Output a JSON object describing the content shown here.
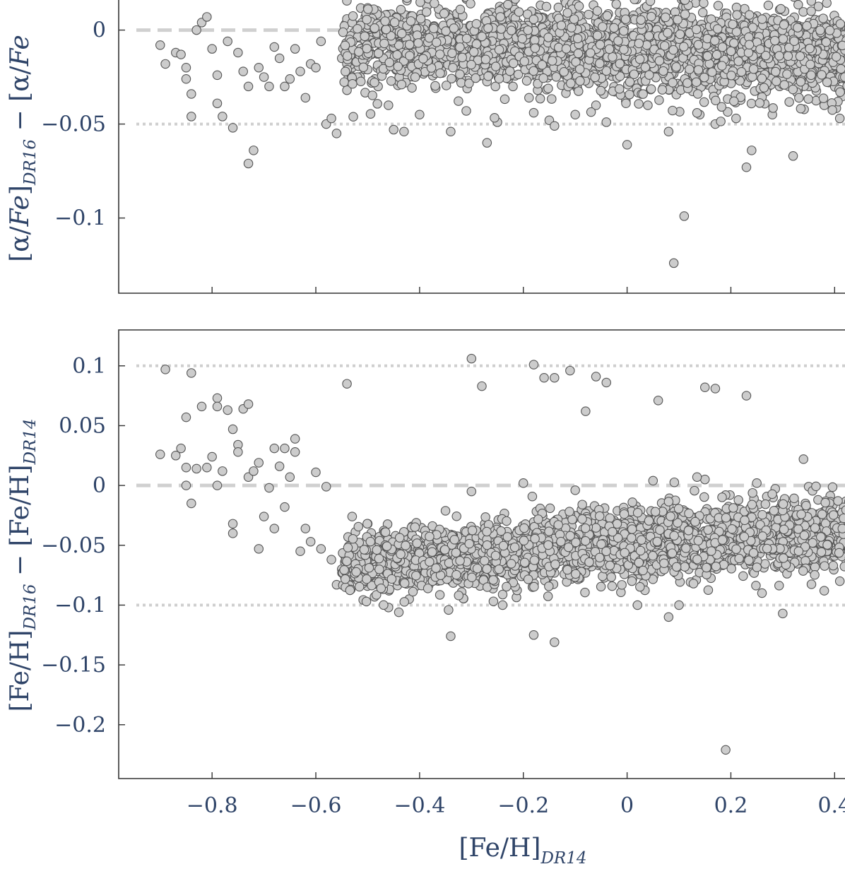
{
  "chart_data": [
    {
      "type": "scatter",
      "panel": "top",
      "ylabel_parts": [
        "[α/",
        "Fe",
        "]",
        "DR16",
        " − [α/",
        "Fe"
      ],
      "yticks": [
        "0",
        "−0.05",
        "−0.1"
      ],
      "ytick_values": [
        0,
        -0.05,
        -0.1
      ],
      "xlim": [
        -0.98,
        0.42
      ],
      "ylim": [
        -0.14,
        0.016
      ],
      "grid": false,
      "reference_lines": [
        {
          "y": 0,
          "style": "dashed"
        },
        {
          "y": -0.05,
          "style": "dotted"
        }
      ],
      "series": [
        {
          "points": [
            [
              -0.9,
              -0.008
            ],
            [
              -0.89,
              -0.018
            ],
            [
              -0.87,
              -0.012
            ],
            [
              -0.86,
              -0.013
            ],
            [
              -0.85,
              -0.026
            ],
            [
              -0.85,
              -0.02
            ],
            [
              -0.84,
              -0.034
            ],
            [
              -0.84,
              -0.046
            ],
            [
              -0.83,
              0.0
            ],
            [
              -0.82,
              0.004
            ],
            [
              -0.81,
              0.007
            ],
            [
              -0.8,
              -0.01
            ],
            [
              -0.79,
              -0.024
            ],
            [
              -0.79,
              -0.039
            ],
            [
              -0.78,
              -0.046
            ],
            [
              -0.77,
              -0.006
            ],
            [
              -0.76,
              -0.052
            ],
            [
              -0.75,
              -0.012
            ],
            [
              -0.74,
              -0.022
            ],
            [
              -0.73,
              -0.03
            ],
            [
              -0.72,
              -0.064
            ],
            [
              -0.73,
              -0.071
            ],
            [
              -0.71,
              -0.02
            ],
            [
              -0.7,
              -0.025
            ],
            [
              -0.69,
              -0.03
            ],
            [
              -0.68,
              -0.009
            ],
            [
              -0.67,
              -0.015
            ],
            [
              -0.66,
              -0.03
            ],
            [
              -0.65,
              -0.026
            ],
            [
              -0.64,
              -0.01
            ],
            [
              -0.63,
              -0.022
            ],
            [
              -0.62,
              -0.036
            ],
            [
              -0.61,
              -0.018
            ],
            [
              -0.6,
              -0.02
            ],
            [
              -0.59,
              -0.006
            ],
            [
              -0.58,
              -0.05
            ],
            [
              -0.57,
              -0.047
            ],
            [
              -0.56,
              -0.055
            ],
            [
              -0.55,
              -0.015
            ],
            [
              -0.54,
              -0.032
            ],
            [
              -0.53,
              -0.02
            ],
            [
              -0.52,
              -0.004
            ],
            [
              -0.5,
              -0.01
            ],
            [
              -0.48,
              -0.03
            ],
            [
              -0.46,
              -0.04
            ],
            [
              -0.45,
              -0.053
            ],
            [
              -0.43,
              -0.054
            ],
            [
              -0.4,
              -0.045
            ],
            [
              -0.37,
              -0.03
            ],
            [
              -0.34,
              -0.054
            ],
            [
              -0.31,
              -0.043
            ],
            [
              -0.27,
              -0.06
            ],
            [
              -0.25,
              -0.049
            ],
            [
              -0.22,
              -0.03
            ],
            [
              -0.18,
              -0.044
            ],
            [
              -0.15,
              -0.048
            ],
            [
              -0.14,
              -0.051
            ],
            [
              -0.1,
              -0.045
            ],
            [
              -0.06,
              -0.04
            ],
            [
              -0.04,
              -0.049
            ],
            [
              0.0,
              -0.061
            ],
            [
              0.04,
              -0.04
            ],
            [
              0.08,
              -0.054
            ],
            [
              0.11,
              -0.099
            ],
            [
              0.09,
              -0.124
            ],
            [
              0.14,
              -0.045
            ],
            [
              0.17,
              -0.05
            ],
            [
              0.21,
              -0.047
            ],
            [
              0.23,
              -0.073
            ],
            [
              0.24,
              -0.064
            ],
            [
              0.28,
              -0.045
            ],
            [
              0.32,
              -0.067
            ],
            [
              0.38,
              -0.04
            ],
            [
              0.41,
              -0.047
            ]
          ]
        }
      ]
    },
    {
      "type": "scatter",
      "panel": "bottom",
      "xlabel_parts": [
        "[Fe/H]",
        "DR14"
      ],
      "ylabel_parts": [
        "[Fe/H]",
        "DR16",
        " − [Fe/H]",
        "DR14"
      ],
      "xticks": [
        "−0.8",
        "−0.6",
        "−0.4",
        "−0.2",
        "0",
        "0.2",
        "0.4"
      ],
      "xtick_values": [
        -0.8,
        -0.6,
        -0.4,
        -0.2,
        0,
        0.2,
        0.4
      ],
      "yticks": [
        "0.1",
        "0.05",
        "0",
        "−0.05",
        "−0.1",
        "−0.15",
        "−0.2"
      ],
      "ytick_values": [
        0.1,
        0.05,
        0,
        -0.05,
        -0.1,
        -0.15,
        -0.2
      ],
      "xlim": [
        -0.98,
        0.42
      ],
      "ylim": [
        -0.245,
        0.13
      ],
      "grid": false,
      "reference_lines": [
        {
          "y": 0.1,
          "style": "dotted"
        },
        {
          "y": 0,
          "style": "dashed"
        },
        {
          "y": -0.1,
          "style": "dotted"
        }
      ],
      "series": [
        {
          "points": [
            [
              -0.89,
              0.097
            ],
            [
              -0.9,
              0.026
            ],
            [
              -0.87,
              0.025
            ],
            [
              -0.86,
              0.031
            ],
            [
              -0.85,
              0.057
            ],
            [
              -0.85,
              0.015
            ],
            [
              -0.85,
              0.0
            ],
            [
              -0.84,
              0.094
            ],
            [
              -0.84,
              -0.015
            ],
            [
              -0.83,
              0.014
            ],
            [
              -0.82,
              0.066
            ],
            [
              -0.81,
              0.015
            ],
            [
              -0.8,
              0.024
            ],
            [
              -0.79,
              0.073
            ],
            [
              -0.79,
              0.066
            ],
            [
              -0.79,
              0.0
            ],
            [
              -0.78,
              0.012
            ],
            [
              -0.77,
              0.063
            ],
            [
              -0.76,
              0.047
            ],
            [
              -0.76,
              -0.04
            ],
            [
              -0.76,
              -0.032
            ],
            [
              -0.75,
              0.034
            ],
            [
              -0.75,
              0.028
            ],
            [
              -0.74,
              0.064
            ],
            [
              -0.73,
              0.068
            ],
            [
              -0.73,
              0.007
            ],
            [
              -0.72,
              0.012
            ],
            [
              -0.71,
              0.019
            ],
            [
              -0.71,
              -0.053
            ],
            [
              -0.7,
              -0.026
            ],
            [
              -0.69,
              -0.002
            ],
            [
              -0.68,
              0.031
            ],
            [
              -0.68,
              -0.036
            ],
            [
              -0.67,
              0.016
            ],
            [
              -0.66,
              0.031
            ],
            [
              -0.66,
              -0.018
            ],
            [
              -0.65,
              0.007
            ],
            [
              -0.64,
              0.039
            ],
            [
              -0.64,
              0.028
            ],
            [
              -0.63,
              -0.055
            ],
            [
              -0.62,
              -0.036
            ],
            [
              -0.61,
              -0.047
            ],
            [
              -0.6,
              0.011
            ],
            [
              -0.59,
              -0.053
            ],
            [
              -0.58,
              -0.001
            ],
            [
              -0.57,
              -0.062
            ],
            [
              -0.56,
              -0.083
            ],
            [
              -0.55,
              -0.07
            ],
            [
              -0.54,
              0.085
            ],
            [
              -0.53,
              -0.026
            ],
            [
              -0.5,
              -0.032
            ],
            [
              -0.46,
              -0.102
            ],
            [
              -0.44,
              -0.106
            ],
            [
              -0.42,
              -0.095
            ],
            [
              -0.34,
              -0.126
            ],
            [
              -0.3,
              0.106
            ],
            [
              -0.28,
              0.083
            ],
            [
              -0.24,
              -0.1
            ],
            [
              -0.18,
              -0.125
            ],
            [
              -0.14,
              -0.131
            ],
            [
              -0.18,
              0.101
            ],
            [
              -0.16,
              0.09
            ],
            [
              -0.14,
              0.09
            ],
            [
              -0.11,
              0.096
            ],
            [
              -0.08,
              0.062
            ],
            [
              -0.06,
              0.091
            ],
            [
              -0.04,
              0.086
            ],
            [
              0.02,
              -0.1
            ],
            [
              0.06,
              0.071
            ],
            [
              0.08,
              -0.11
            ],
            [
              0.1,
              -0.1
            ],
            [
              0.15,
              0.082
            ],
            [
              0.17,
              0.081
            ],
            [
              0.19,
              -0.221
            ],
            [
              0.23,
              0.075
            ],
            [
              0.26,
              -0.09
            ],
            [
              0.3,
              -0.107
            ],
            [
              0.34,
              0.022
            ],
            [
              0.38,
              -0.088
            ],
            [
              0.41,
              -0.08
            ],
            [
              -0.3,
              -0.005
            ],
            [
              -0.2,
              0.002
            ],
            [
              -0.1,
              -0.004
            ],
            [
              0.05,
              0.004
            ],
            [
              0.15,
              0.005
            ],
            [
              0.25,
              0.002
            ],
            [
              0.35,
              -0.001
            ]
          ]
        }
      ]
    }
  ]
}
